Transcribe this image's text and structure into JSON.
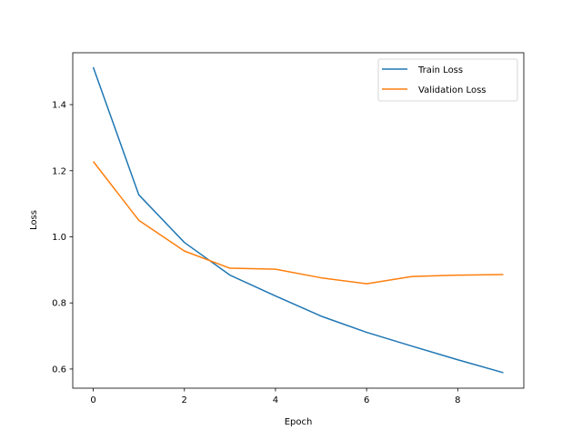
{
  "chart_data": {
    "type": "line",
    "title": "",
    "xlabel": "Epoch",
    "ylabel": "Loss",
    "x": [
      0,
      1,
      2,
      3,
      4,
      5,
      6,
      7,
      8,
      9
    ],
    "xlim": [
      -0.45,
      9.45
    ],
    "ylim": [
      0.542,
      1.557
    ],
    "xticks": [
      0,
      2,
      4,
      6,
      8
    ],
    "xtick_labels": [
      "0",
      "2",
      "4",
      "6",
      "8"
    ],
    "yticks": [
      0.6,
      0.8,
      1.0,
      1.2,
      1.4
    ],
    "ytick_labels": [
      "0.6",
      "0.8",
      "1.0",
      "1.2",
      "1.4"
    ],
    "grid": false,
    "legend_position": "top-right",
    "series": [
      {
        "name": "Train Loss",
        "color": "#1f77b4",
        "values": [
          1.513,
          1.127,
          0.983,
          0.884,
          0.821,
          0.76,
          0.711,
          0.669,
          0.628,
          0.589
        ]
      },
      {
        "name": "Validation Loss",
        "color": "#ff7f0e",
        "values": [
          1.228,
          1.05,
          0.957,
          0.905,
          0.902,
          0.876,
          0.858,
          0.88,
          0.884,
          0.886
        ]
      }
    ]
  }
}
